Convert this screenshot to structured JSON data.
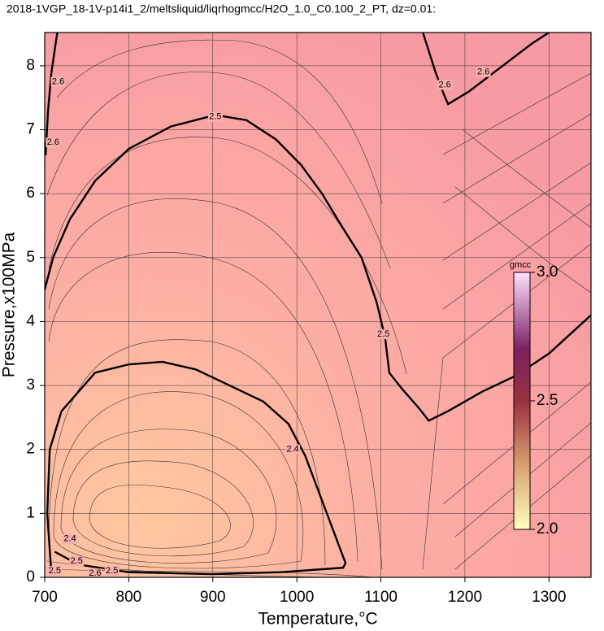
{
  "chart_data": {
    "type": "contour",
    "title": "2018-1VGP_18-1V-p14i1_2/meltsliquid/liqrhogmcc/H2O_1.0_C0.100_2_PT, dz=0.01:",
    "xlabel": "Temperature,°C",
    "ylabel": "Pressure,x100MPa",
    "xlim": [
      700,
      1350
    ],
    "ylim": [
      0,
      8.52
    ],
    "xticks": [
      700,
      800,
      900,
      1000,
      1100,
      1200,
      1300
    ],
    "yticks": [
      0,
      1,
      2,
      3,
      4,
      5,
      6,
      7,
      8
    ],
    "grid": true,
    "contours": [
      {
        "level": 2.4,
        "x": [
          708,
          703,
          706,
          720,
          760,
          800,
          840,
          880,
          920,
          960,
          990,
          1010,
          1030,
          1050,
          1058,
          1055,
          980,
          900,
          800,
          740,
          712
        ],
        "y": [
          0.05,
          1.0,
          2.0,
          2.6,
          3.2,
          3.33,
          3.37,
          3.25,
          3.0,
          2.75,
          2.4,
          1.9,
          1.2,
          0.5,
          0.22,
          0.15,
          0.08,
          0.05,
          0.08,
          0.2,
          0.4
        ]
      },
      {
        "level": 2.5,
        "x": [
          700,
          710,
          730,
          760,
          800,
          850,
          903,
          940,
          975,
          1005,
          1030,
          1053,
          1077,
          1095,
          1105,
          1110,
          1125,
          1145,
          1157,
          1180,
          1220,
          1260,
          1300,
          1350
        ],
        "y": [
          4.5,
          5.0,
          5.6,
          6.2,
          6.7,
          7.05,
          7.23,
          7.15,
          6.85,
          6.45,
          6.0,
          5.5,
          5.0,
          4.3,
          3.75,
          3.2,
          2.95,
          2.65,
          2.45,
          2.6,
          2.9,
          3.15,
          3.5,
          4.1
        ]
      },
      {
        "level": 2.6,
        "x": [
          1150,
          1165,
          1175,
          1180,
          1205,
          1240,
          1280,
          1300
        ],
        "y": [
          8.52,
          7.9,
          7.55,
          7.4,
          7.6,
          7.95,
          8.35,
          8.52
        ]
      },
      {
        "level": 2.6,
        "x": [
          701,
          704,
          708,
          715
        ],
        "y": [
          6.6,
          7.3,
          7.9,
          8.52
        ]
      }
    ],
    "contour_labels": [
      {
        "level": 2.5,
        "x": 903,
        "y": 7.2
      },
      {
        "level": 2.5,
        "x": 1103,
        "y": 3.8
      },
      {
        "level": 2.4,
        "x": 995,
        "y": 2.0
      },
      {
        "level": 2.4,
        "x": 730,
        "y": 0.6
      },
      {
        "level": 2.6,
        "x": 1176,
        "y": 7.7
      },
      {
        "level": 2.6,
        "x": 1222,
        "y": 7.9
      },
      {
        "level": 2.6,
        "x": 716,
        "y": 7.75
      },
      {
        "level": 2.6,
        "x": 710,
        "y": 6.8
      },
      {
        "level": 2.5,
        "x": 738,
        "y": 0.25
      },
      {
        "level": 2.5,
        "x": 780,
        "y": 0.1
      },
      {
        "level": 2.6,
        "x": 760,
        "y": 0.06
      },
      {
        "level": 2.5,
        "x": 712,
        "y": 0.1
      }
    ],
    "colorbar": {
      "label": "gmcc",
      "lim": [
        2.0,
        3.0
      ],
      "ticks": [
        {
          "value": 2.0,
          "label": "2.0"
        },
        {
          "value": 2.5,
          "label": "2.5"
        },
        {
          "value": 3.0,
          "label": "3.0"
        }
      ]
    }
  }
}
